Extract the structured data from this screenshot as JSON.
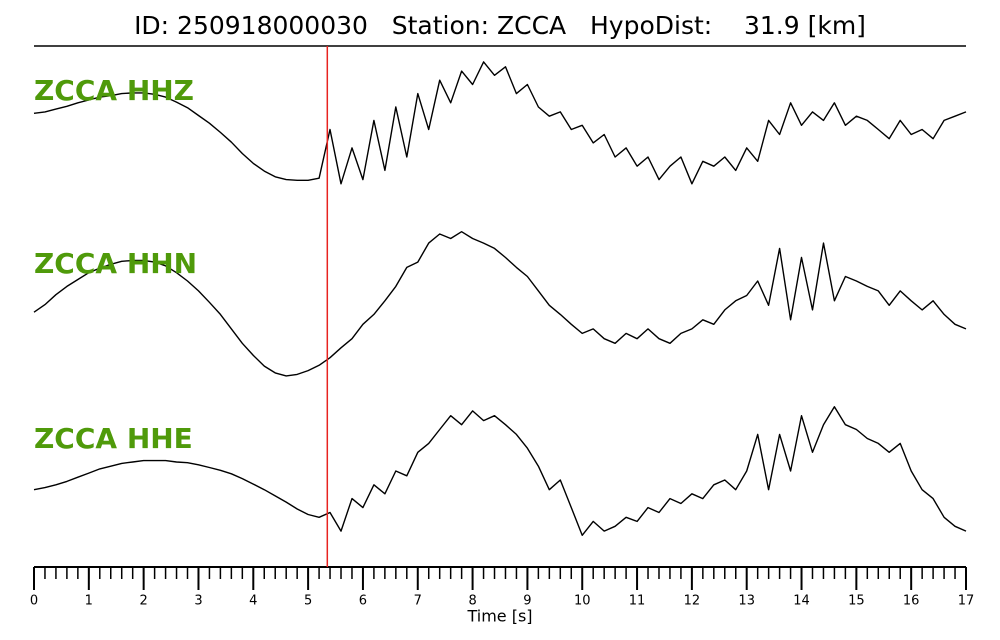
{
  "chart_data": {
    "type": "line",
    "title": "ID: 250918000030   Station: ZCCA   HypoDist:    31.9 [km]",
    "xlabel": "Time [s]",
    "xlim": [
      0,
      17
    ],
    "xticks": [
      0,
      1,
      2,
      3,
      4,
      5,
      6,
      7,
      8,
      9,
      10,
      11,
      12,
      13,
      14,
      15,
      16,
      17
    ],
    "xminor_step": 0.2,
    "ylim": [
      -1.1,
      1.1
    ],
    "pick_time": 5.35,
    "pick_color": "#e8231f",
    "label_color": "#4f9a0a",
    "x": [
      0,
      0.2,
      0.4,
      0.6,
      0.8,
      1,
      1.2,
      1.4,
      1.6,
      1.8,
      2,
      2.2,
      2.4,
      2.6,
      2.8,
      3,
      3.2,
      3.4,
      3.6,
      3.8,
      4,
      4.2,
      4.4,
      4.6,
      4.8,
      5,
      5.2,
      5.4,
      5.6,
      5.8,
      6,
      6.2,
      6.4,
      6.6,
      6.8,
      7,
      7.2,
      7.4,
      7.6,
      7.8,
      8,
      8.2,
      8.4,
      8.6,
      8.8,
      9,
      9.2,
      9.4,
      9.6,
      9.8,
      10,
      10.2,
      10.4,
      10.6,
      10.8,
      11,
      11.2,
      11.4,
      11.6,
      11.8,
      12,
      12.2,
      12.4,
      12.6,
      12.8,
      13,
      13.2,
      13.4,
      13.6,
      13.8,
      14,
      14.2,
      14.4,
      14.6,
      14.8,
      15,
      15.2,
      15.4,
      15.6,
      15.8,
      16,
      16.2,
      16.4,
      16.6,
      16.8,
      17
    ],
    "series": [
      {
        "name": "ZCCA HHZ",
        "color": "#000000",
        "values": [
          0.13,
          0.15,
          0.19,
          0.23,
          0.28,
          0.32,
          0.36,
          0.38,
          0.41,
          0.42,
          0.42,
          0.4,
          0.36,
          0.29,
          0.21,
          0.1,
          -0.01,
          -0.14,
          -0.28,
          -0.44,
          -0.58,
          -0.69,
          -0.77,
          -0.81,
          -0.82,
          -0.82,
          -0.79,
          -0.1,
          -0.87,
          -0.36,
          -0.81,
          0.03,
          -0.68,
          0.22,
          -0.49,
          0.41,
          -0.1,
          0.6,
          0.28,
          0.73,
          0.54,
          0.86,
          0.67,
          0.79,
          0.41,
          0.54,
          0.22,
          0.09,
          0.15,
          -0.1,
          -0.04,
          -0.29,
          -0.17,
          -0.49,
          -0.36,
          -0.62,
          -0.49,
          -0.81,
          -0.62,
          -0.49,
          -0.87,
          -0.55,
          -0.62,
          -0.49,
          -0.68,
          -0.36,
          -0.55,
          0.03,
          -0.17,
          0.28,
          -0.04,
          0.15,
          0.03,
          0.28,
          -0.04,
          0.09,
          0.03,
          -0.1,
          -0.23,
          0.03,
          -0.17,
          -0.1,
          -0.23,
          0.03,
          0.09,
          0.15
        ]
      },
      {
        "name": "ZCCA HHN",
        "color": "#000000",
        "values": [
          -0.18,
          -0.08,
          0.05,
          0.16,
          0.25,
          0.34,
          0.4,
          0.45,
          0.49,
          0.5,
          0.5,
          0.48,
          0.43,
          0.34,
          0.23,
          0.1,
          -0.05,
          -0.21,
          -0.4,
          -0.59,
          -0.75,
          -0.89,
          -0.98,
          -1.02,
          -1.0,
          -0.95,
          -0.88,
          -0.78,
          -0.65,
          -0.53,
          -0.34,
          -0.21,
          -0.03,
          0.16,
          0.41,
          0.48,
          0.73,
          0.85,
          0.79,
          0.88,
          0.79,
          0.73,
          0.66,
          0.54,
          0.41,
          0.29,
          0.1,
          -0.09,
          -0.21,
          -0.34,
          -0.46,
          -0.4,
          -0.53,
          -0.59,
          -0.46,
          -0.53,
          -0.4,
          -0.53,
          -0.59,
          -0.46,
          -0.4,
          -0.28,
          -0.34,
          -0.15,
          -0.03,
          0.04,
          0.23,
          -0.09,
          0.66,
          -0.28,
          0.54,
          -0.15,
          0.73,
          -0.03,
          0.29,
          0.23,
          0.16,
          0.1,
          -0.09,
          0.1,
          -0.03,
          -0.15,
          -0.03,
          -0.21,
          -0.34,
          -0.4
        ]
      },
      {
        "name": "ZCCA HHE",
        "color": "#000000",
        "values": [
          -0.27,
          -0.24,
          -0.2,
          -0.15,
          -0.09,
          -0.03,
          0.03,
          0.07,
          0.11,
          0.13,
          0.15,
          0.15,
          0.15,
          0.13,
          0.12,
          0.09,
          0.05,
          0.01,
          -0.04,
          -0.11,
          -0.19,
          -0.27,
          -0.36,
          -0.45,
          -0.55,
          -0.63,
          -0.67,
          -0.6,
          -0.87,
          -0.4,
          -0.53,
          -0.2,
          -0.33,
          0.0,
          -0.07,
          0.27,
          0.4,
          0.6,
          0.8,
          0.67,
          0.87,
          0.73,
          0.8,
          0.67,
          0.53,
          0.33,
          0.07,
          -0.27,
          -0.13,
          -0.53,
          -0.93,
          -0.73,
          -0.87,
          -0.8,
          -0.67,
          -0.73,
          -0.53,
          -0.6,
          -0.4,
          -0.47,
          -0.33,
          -0.4,
          -0.2,
          -0.13,
          -0.27,
          0.0,
          0.53,
          -0.27,
          0.53,
          0.0,
          0.8,
          0.27,
          0.67,
          0.93,
          0.67,
          0.6,
          0.47,
          0.4,
          0.27,
          0.4,
          0.0,
          -0.27,
          -0.4,
          -0.67,
          -0.8,
          -0.87
        ]
      }
    ]
  }
}
